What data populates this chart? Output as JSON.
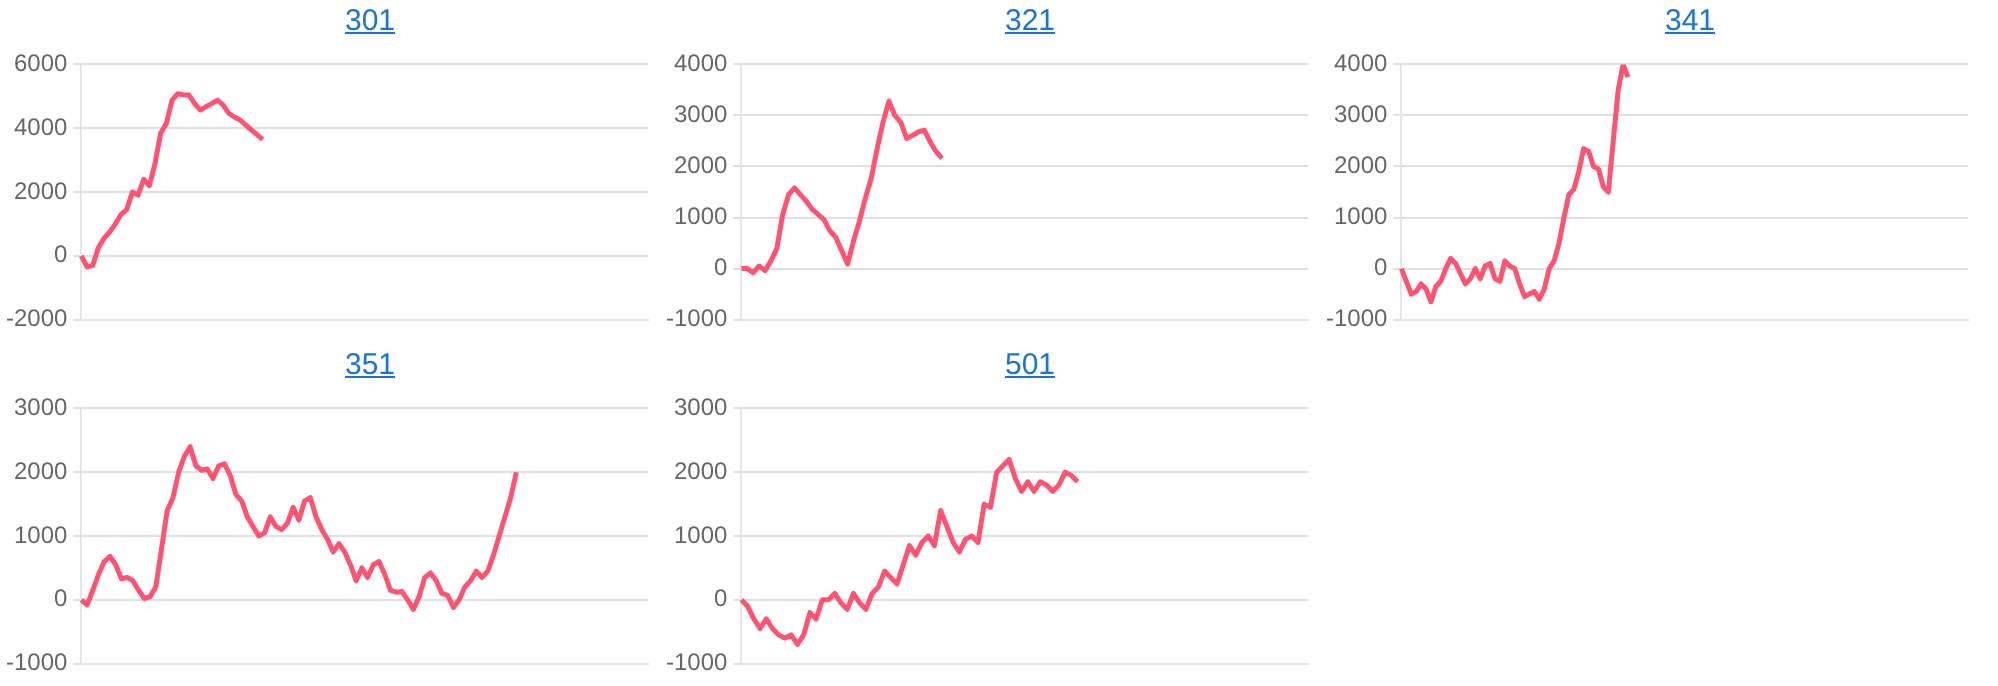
{
  "chart_data": [
    {
      "type": "line",
      "title": "301",
      "categories": [
        null,
        null,
        null,
        null,
        null,
        null,
        null,
        null,
        null,
        null,
        null,
        null,
        null,
        null,
        null,
        null,
        null,
        null,
        null,
        null,
        null,
        null,
        null,
        null,
        null,
        null,
        null,
        null,
        null,
        null,
        null,
        null,
        null,
        null,
        null,
        null,
        null,
        null,
        null,
        null,
        null,
        null,
        null,
        null,
        null,
        null,
        null,
        null,
        null,
        null,
        null,
        null,
        null,
        null,
        null,
        null,
        null,
        null,
        null,
        null,
        null,
        null,
        null,
        null,
        null,
        null,
        null,
        null,
        null,
        null,
        null,
        null,
        null,
        null,
        null,
        null,
        null,
        null,
        null,
        null,
        null,
        null,
        null,
        null,
        null,
        null,
        null,
        null,
        null,
        null,
        null,
        null,
        null,
        null,
        null,
        null,
        null,
        null,
        null,
        null,
        null
      ],
      "series": [
        {
          "color": "#ff5372",
          "values": [
            0,
            -350,
            -300,
            250,
            550,
            750,
            1000,
            1300,
            1450,
            2000,
            1900,
            2400,
            2200,
            2900,
            3850,
            4150,
            4880,
            5080,
            5050,
            5040,
            4770,
            4570,
            4680,
            4770,
            4880,
            4730,
            4470,
            4350,
            4260,
            4100,
            3950,
            3800,
            3650,
            null,
            null,
            null,
            null,
            null,
            null,
            null,
            null,
            null,
            null,
            null,
            null,
            null,
            null,
            null,
            null,
            null,
            null,
            null,
            null,
            null,
            null,
            null,
            null,
            null,
            null,
            null,
            null,
            null,
            null,
            null,
            null,
            null,
            null,
            null,
            null,
            null,
            null,
            null,
            null,
            null,
            null,
            null,
            null,
            null,
            null,
            null,
            null,
            null,
            null,
            null,
            null,
            null,
            null,
            null,
            null,
            null,
            null,
            null,
            null,
            null,
            null,
            null,
            null,
            null,
            null,
            null,
            null
          ]
        }
      ],
      "ylim": [
        -2000,
        6000
      ],
      "yticks": [
        -2000,
        0,
        2000,
        4000,
        6000
      ],
      "grid": "y",
      "tick_labels": "y",
      "marker": "none",
      "line_style": "solid"
    },
    {
      "type": "line",
      "title": "321",
      "categories": [
        null,
        null,
        null,
        null,
        null,
        null,
        null,
        null,
        null,
        null,
        null,
        null,
        null,
        null,
        null,
        null,
        null,
        null,
        null,
        null,
        null,
        null,
        null,
        null,
        null,
        null,
        null,
        null,
        null,
        null,
        null,
        null,
        null,
        null,
        null,
        null,
        null,
        null,
        null,
        null,
        null,
        null,
        null,
        null,
        null,
        null,
        null,
        null,
        null,
        null,
        null,
        null,
        null,
        null,
        null,
        null,
        null,
        null,
        null,
        null,
        null,
        null,
        null,
        null,
        null,
        null,
        null,
        null,
        null,
        null,
        null,
        null,
        null,
        null,
        null,
        null,
        null,
        null,
        null,
        null,
        null,
        null,
        null,
        null,
        null,
        null,
        null,
        null,
        null,
        null,
        null,
        null,
        null,
        null,
        null,
        null,
        null
      ],
      "series": [
        {
          "color": "#ff5372",
          "values": [
            0,
            0,
            -80,
            50,
            -40,
            150,
            390,
            1060,
            1450,
            1580,
            1450,
            1320,
            1160,
            1060,
            960,
            740,
            610,
            350,
            90,
            540,
            930,
            1380,
            1770,
            2350,
            2870,
            3280,
            3000,
            2870,
            2550,
            2610,
            2680,
            2710,
            2480,
            2290,
            2160,
            null,
            null,
            null,
            null,
            null,
            null,
            null,
            null,
            null,
            null,
            null,
            null,
            null,
            null,
            null,
            null,
            null,
            null,
            null,
            null,
            null,
            null,
            null,
            null,
            null,
            null,
            null,
            null,
            null,
            null,
            null,
            null,
            null,
            null,
            null,
            null,
            null,
            null,
            null,
            null,
            null,
            null,
            null,
            null,
            null,
            null,
            null,
            null,
            null,
            null,
            null,
            null,
            null,
            null,
            null,
            null,
            null,
            null,
            null,
            null,
            null,
            null
          ]
        }
      ],
      "ylim": [
        -1000,
        4000
      ],
      "yticks": [
        -1000,
        0,
        1000,
        2000,
        3000,
        4000
      ],
      "grid": "y",
      "tick_labels": "y",
      "marker": "none",
      "line_style": "solid"
    },
    {
      "type": "line",
      "title": "341",
      "categories": [
        null,
        null,
        null,
        null,
        null,
        null,
        null,
        null,
        null,
        null,
        null,
        null,
        null,
        null,
        null,
        null,
        null,
        null,
        null,
        null,
        null,
        null,
        null,
        null,
        null,
        null,
        null,
        null,
        null,
        null,
        null,
        null,
        null,
        null,
        null,
        null,
        null,
        null,
        null,
        null,
        null,
        null,
        null,
        null,
        null,
        null,
        null,
        null,
        null,
        null,
        null,
        null,
        null,
        null,
        null,
        null,
        null,
        null,
        null,
        null,
        null,
        null,
        null,
        null,
        null,
        null,
        null,
        null,
        null,
        null,
        null,
        null,
        null,
        null,
        null,
        null,
        null,
        null,
        null,
        null,
        null,
        null,
        null,
        null,
        null,
        null,
        null,
        null,
        null,
        null,
        null,
        null,
        null,
        null,
        null,
        null,
        null,
        null,
        null,
        null,
        null,
        null,
        null,
        null,
        null,
        null,
        null,
        null,
        null,
        null,
        null,
        null,
        null,
        null,
        null,
        null
      ],
      "series": [
        {
          "color": "#ff5372",
          "values": [
            0,
            -250,
            -500,
            -450,
            -300,
            -400,
            -650,
            -350,
            -250,
            0,
            200,
            100,
            -100,
            -300,
            -200,
            0,
            -200,
            50,
            100,
            -200,
            -250,
            150,
            50,
            0,
            -300,
            -550,
            -500,
            -450,
            -600,
            -400,
            0,
            150,
            500,
            1000,
            1450,
            1550,
            1900,
            2350,
            2300,
            2000,
            1950,
            1600,
            1500,
            2500,
            3500,
            4000,
            3750,
            null,
            null,
            null,
            null,
            null,
            null,
            null,
            null,
            null,
            null,
            null,
            null,
            null,
            null,
            null,
            null,
            null,
            null,
            null,
            null,
            null,
            null,
            null,
            null,
            null,
            null,
            null,
            null,
            null,
            null,
            null,
            null,
            null,
            null,
            null,
            null,
            null,
            null,
            null,
            null,
            null,
            null,
            null,
            null,
            null,
            null,
            null,
            null,
            null,
            null,
            null,
            null,
            null,
            null,
            null,
            null,
            null,
            null,
            null,
            null,
            null,
            null,
            null,
            null,
            null,
            null,
            null,
            null,
            null
          ]
        }
      ],
      "ylim": [
        -1000,
        4000
      ],
      "yticks": [
        -1000,
        0,
        1000,
        2000,
        3000,
        4000
      ],
      "grid": "y",
      "tick_labels": "y",
      "marker": "none",
      "line_style": "solid"
    },
    {
      "type": "line",
      "title": "351",
      "categories": [
        null,
        null,
        null,
        null,
        null,
        null,
        null,
        null,
        null,
        null,
        null,
        null,
        null,
        null,
        null,
        null,
        null,
        null,
        null,
        null,
        null,
        null,
        null,
        null,
        null,
        null,
        null,
        null,
        null,
        null,
        null,
        null,
        null,
        null,
        null,
        null,
        null,
        null,
        null,
        null,
        null,
        null,
        null,
        null,
        null,
        null,
        null,
        null,
        null,
        null,
        null,
        null,
        null,
        null,
        null,
        null,
        null,
        null,
        null,
        null,
        null,
        null,
        null,
        null,
        null,
        null,
        null,
        null,
        null,
        null,
        null,
        null,
        null,
        null,
        null,
        null,
        null,
        null,
        null,
        null,
        null,
        null,
        null,
        null,
        null,
        null,
        null,
        null,
        null,
        null,
        null,
        null,
        null,
        null,
        null,
        null,
        null,
        null,
        null,
        null
      ],
      "series": [
        {
          "color": "#ff5372",
          "values": [
            0,
            -80,
            150,
            400,
            600,
            680,
            550,
            330,
            350,
            300,
            150,
            20,
            50,
            200,
            800,
            1400,
            1600,
            2000,
            2250,
            2400,
            2100,
            2030,
            2050,
            1900,
            2100,
            2130,
            1950,
            1650,
            1550,
            1300,
            1150,
            1000,
            1050,
            1300,
            1150,
            1100,
            1200,
            1450,
            1250,
            1550,
            1600,
            1300,
            1100,
            950,
            750,
            880,
            750,
            550,
            300,
            500,
            350,
            550,
            600,
            400,
            150,
            120,
            130,
            0,
            -150,
            50,
            350,
            420,
            300,
            100,
            70,
            -120,
            0,
            200,
            300,
            450,
            350,
            450,
            700,
            1000,
            1300,
            1600,
            2000,
            null,
            null,
            null,
            null,
            null,
            null,
            null,
            null,
            null,
            null,
            null,
            null,
            null,
            null,
            null,
            null,
            null,
            null,
            null,
            null,
            null,
            null,
            null
          ]
        }
      ],
      "ylim": [
        -1000,
        3000
      ],
      "yticks": [
        -1000,
        0,
        1000,
        2000,
        3000
      ],
      "grid": "y",
      "tick_labels": "y",
      "marker": "none",
      "line_style": "solid"
    },
    {
      "type": "line",
      "title": "501",
      "categories": [
        null,
        null,
        null,
        null,
        null,
        null,
        null,
        null,
        null,
        null,
        null,
        null,
        null,
        null,
        null,
        null,
        null,
        null,
        null,
        null,
        null,
        null,
        null,
        null,
        null,
        null,
        null,
        null,
        null,
        null,
        null,
        null,
        null,
        null,
        null,
        null,
        null,
        null,
        null,
        null,
        null,
        null,
        null,
        null,
        null,
        null,
        null,
        null,
        null,
        null,
        null,
        null,
        null,
        null,
        null,
        null,
        null,
        null,
        null,
        null,
        null,
        null,
        null,
        null,
        null,
        null,
        null,
        null,
        null,
        null,
        null,
        null,
        null,
        null,
        null,
        null,
        null,
        null,
        null,
        null,
        null,
        null,
        null,
        null,
        null,
        null,
        null,
        null,
        null,
        null,
        null,
        null
      ],
      "series": [
        {
          "color": "#ff5372",
          "values": [
            0,
            -100,
            -300,
            -450,
            -300,
            -450,
            -550,
            -600,
            -550,
            -700,
            -550,
            -200,
            -300,
            0,
            0,
            100,
            -50,
            -150,
            100,
            -50,
            -150,
            100,
            200,
            450,
            350,
            250,
            550,
            850,
            700,
            900,
            1000,
            850,
            1400,
            1150,
            900,
            750,
            950,
            1000,
            900,
            1500,
            1450,
            2000,
            2100,
            2200,
            1900,
            1700,
            1850,
            1700,
            1850,
            1800,
            1700,
            1800,
            2000,
            1950,
            1850,
            null,
            null,
            null,
            null,
            null,
            null,
            null,
            null,
            null,
            null,
            null,
            null,
            null,
            null,
            null,
            null,
            null,
            null,
            null,
            null,
            null,
            null,
            null,
            null,
            null,
            null,
            null,
            null,
            null,
            null,
            null,
            null,
            null,
            null,
            null,
            null,
            null
          ]
        }
      ],
      "ylim": [
        -1000,
        3000
      ],
      "yticks": [
        -1000,
        0,
        1000,
        2000,
        3000
      ],
      "grid": "y",
      "tick_labels": "y",
      "marker": "none",
      "line_style": "solid"
    }
  ]
}
